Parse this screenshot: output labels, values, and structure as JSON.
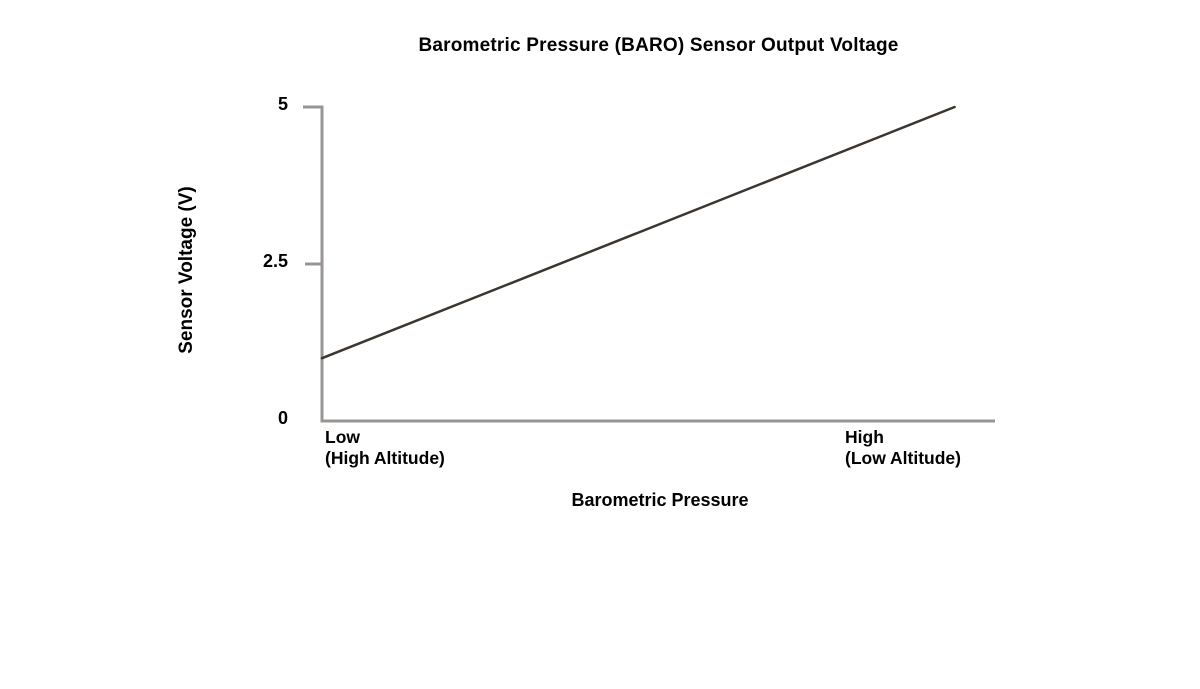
{
  "chart_data": {
    "type": "line",
    "title": "Barometric Pressure (BARO) Sensor Output Voltage",
    "xlabel": "Barometric Pressure",
    "ylabel": "Sensor Voltage (V)",
    "ylim": [
      0,
      5
    ],
    "yticks": [
      5,
      2.5,
      0
    ],
    "ytick_labels": [
      "5",
      "2.5",
      "0"
    ],
    "xlim": [
      0,
      1
    ],
    "x_end_labels": {
      "left_line1": "Low",
      "left_line2": "(High Altitude)",
      "right_line1": "High",
      "right_line2": "(Low Altitude)"
    },
    "grid": false,
    "legend": false,
    "series": [
      {
        "name": "BARO sensor output voltage",
        "points": [
          {
            "x": 0.0,
            "y": 1.0
          },
          {
            "x": 0.94,
            "y": 5.0
          }
        ]
      }
    ]
  },
  "colors": {
    "axis": "#999593",
    "data_line": "#3c3631",
    "text": "#000000",
    "background": "#ffffff"
  }
}
